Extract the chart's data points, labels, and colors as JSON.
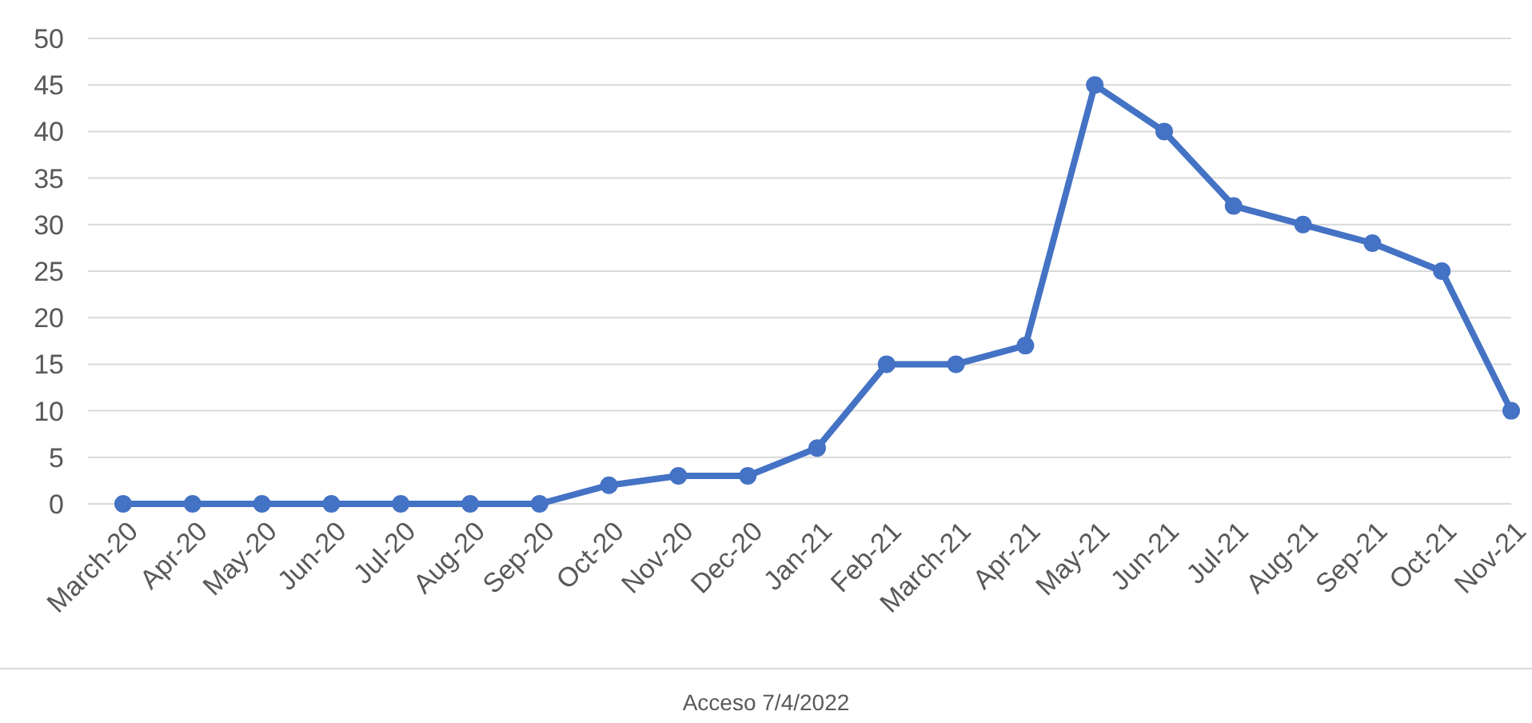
{
  "chart_data": {
    "type": "line",
    "categories": [
      "March-20",
      "Apr-20",
      "May-20",
      "Jun-20",
      "Jul-20",
      "Aug-20",
      "Sep-20",
      "Oct-20",
      "Nov-20",
      "Dec-20",
      "Jan-21",
      "Feb-21",
      "March-21",
      "Apr-21",
      "May-21",
      "Jun-21",
      "Jul-21",
      "Aug-21",
      "Sep-21",
      "Oct-21",
      "Nov-21"
    ],
    "series": [
      {
        "color": "#4472c4",
        "values": [
          0,
          0,
          0,
          0,
          0,
          0,
          0,
          2,
          3,
          3,
          6,
          15,
          15,
          17,
          45,
          40,
          32,
          30,
          28,
          25,
          10
        ]
      }
    ],
    "ylim": [
      0,
      50
    ],
    "yticks": [
      0,
      5,
      10,
      15,
      20,
      25,
      30,
      35,
      40,
      45,
      50
    ],
    "grid": "y",
    "marker": "circle",
    "line_style": "solid",
    "annotations": [
      "Acceso 7/4/2022"
    ]
  }
}
